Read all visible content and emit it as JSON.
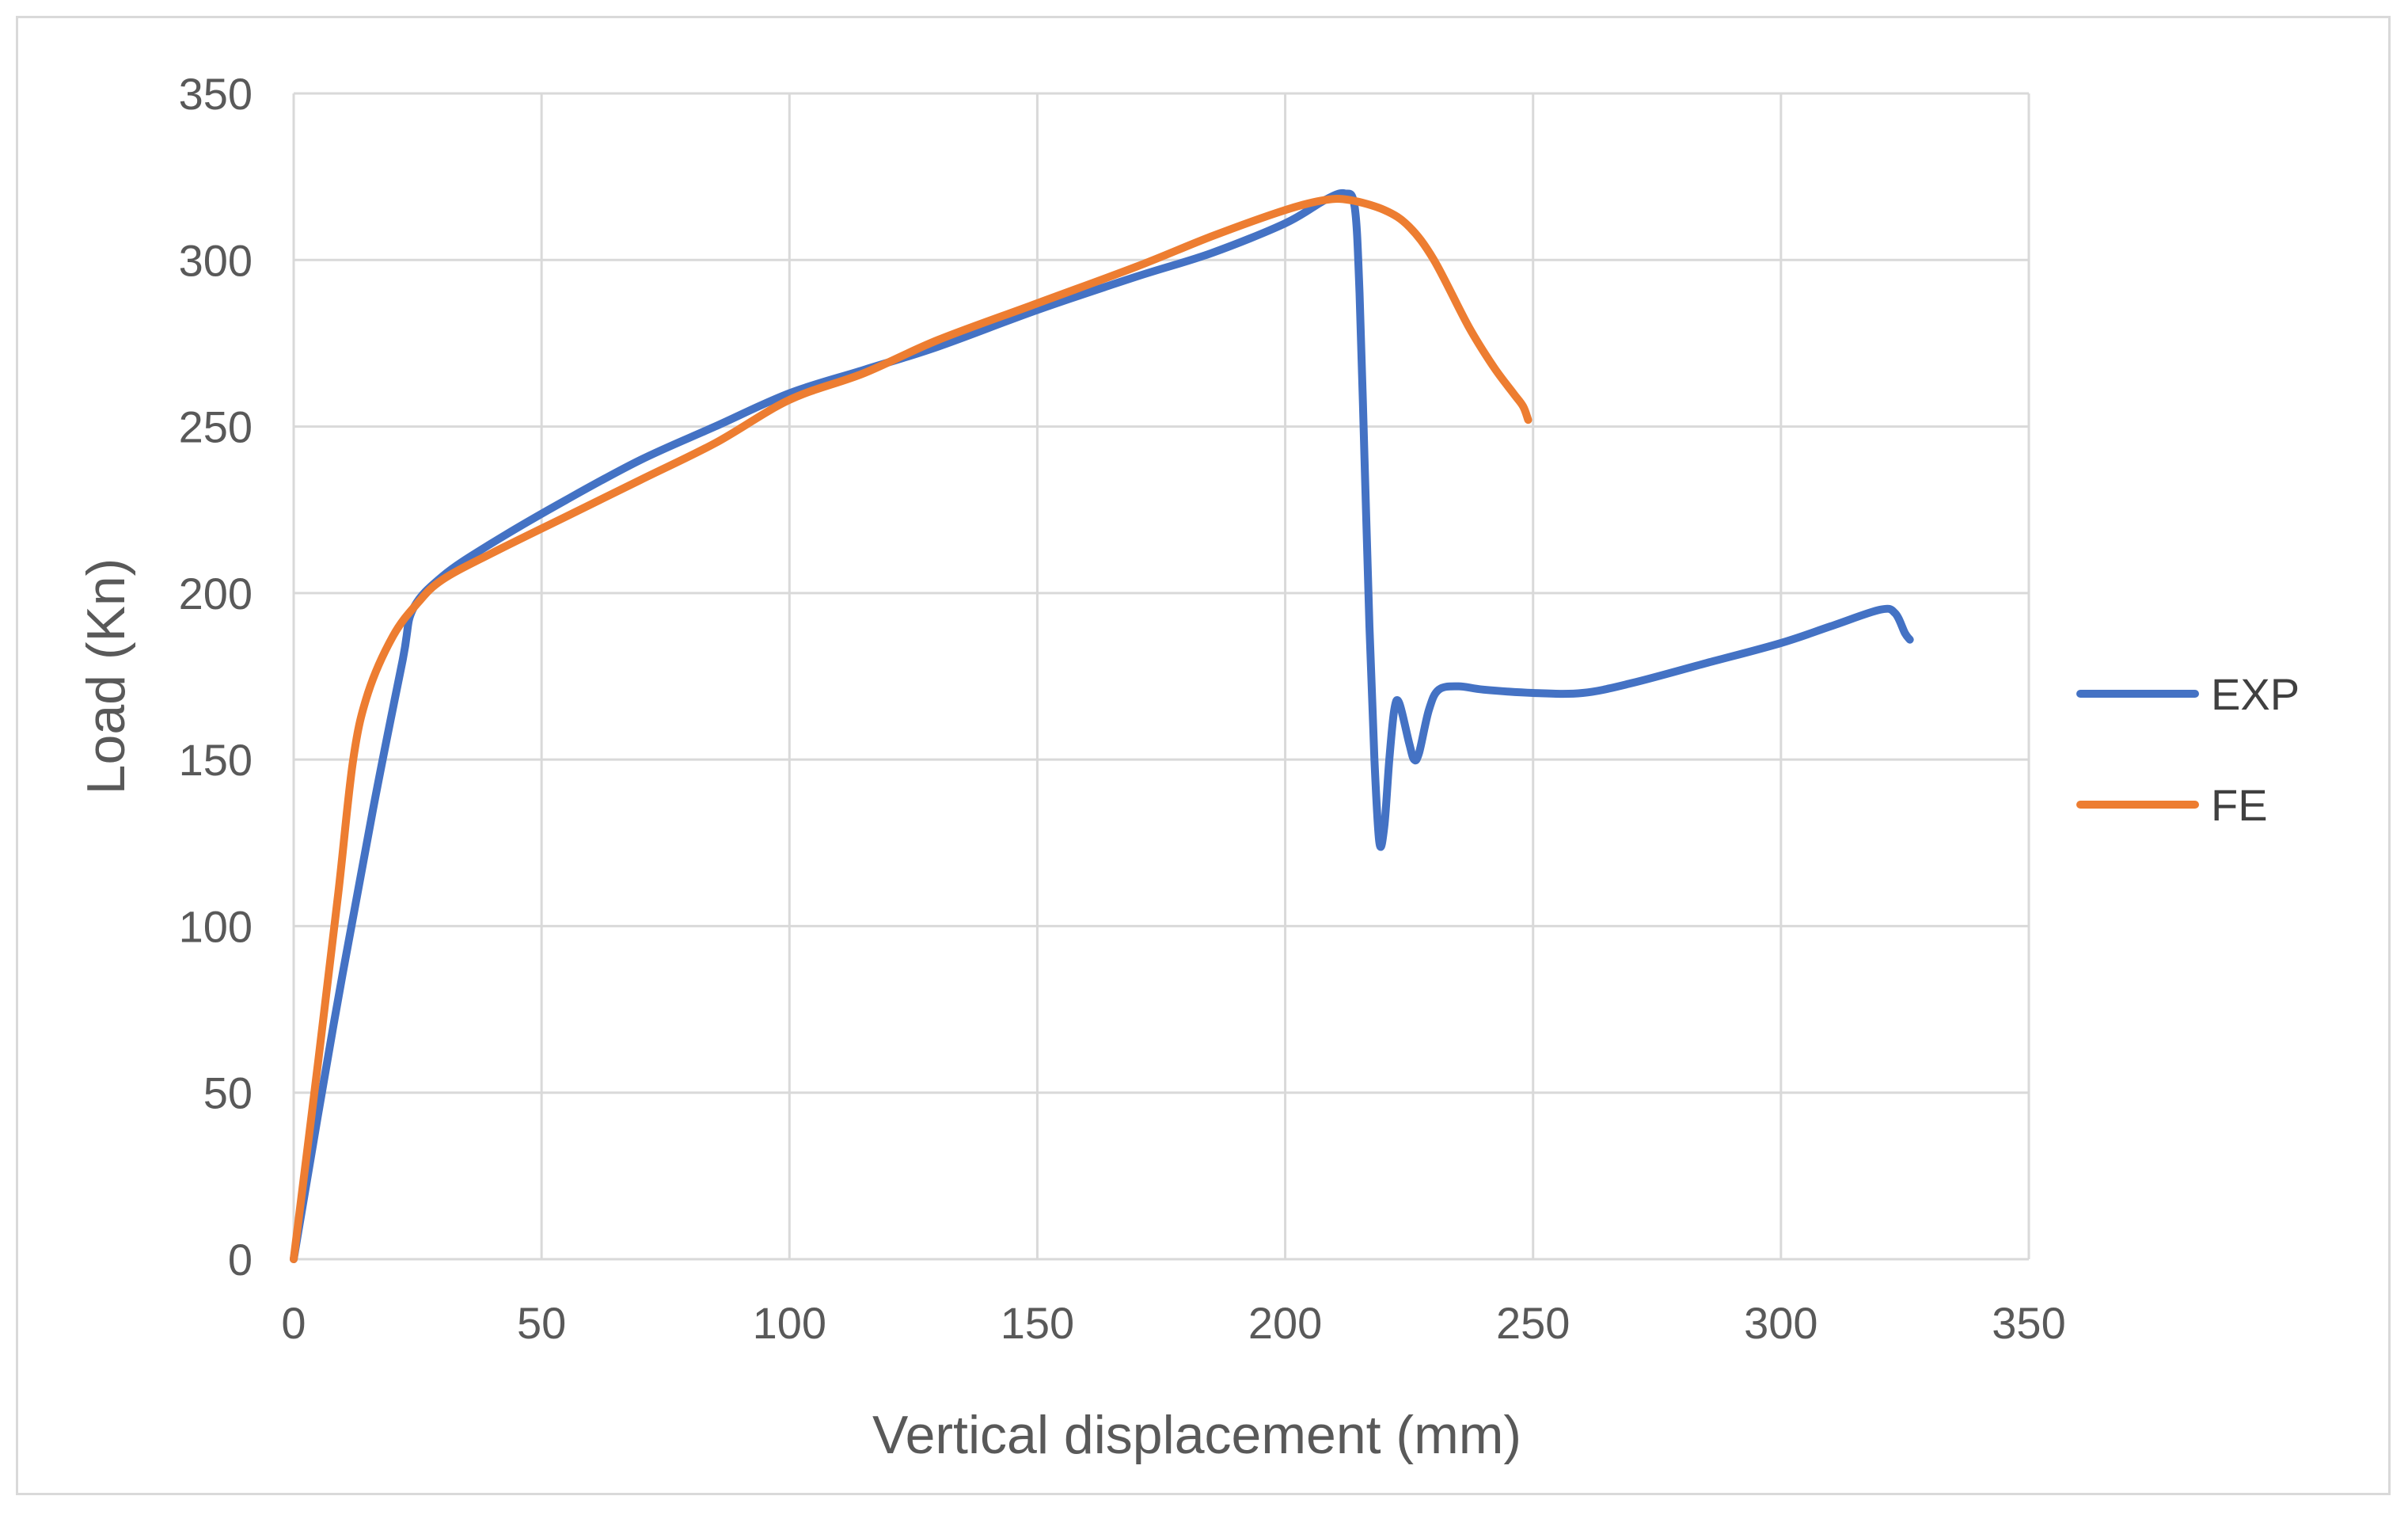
{
  "chart_data": {
    "type": "line",
    "title": "",
    "xlabel": "Vertical displacement (mm)",
    "ylabel": "Load (Kn)",
    "xlim": [
      0,
      350
    ],
    "ylim": [
      0,
      350
    ],
    "xticks": [
      0,
      50,
      100,
      150,
      200,
      250,
      300,
      350
    ],
    "yticks": [
      0,
      50,
      100,
      150,
      200,
      250,
      300,
      350
    ],
    "grid": true,
    "legend": "right",
    "series": [
      {
        "name": "EXP",
        "color": "#4472C4",
        "points": [
          [
            0,
            0
          ],
          [
            8,
            70
          ],
          [
            16,
            135
          ],
          [
            22,
            180
          ],
          [
            24,
            195
          ],
          [
            30,
            205
          ],
          [
            40,
            215
          ],
          [
            55,
            228
          ],
          [
            70,
            240
          ],
          [
            85,
            250
          ],
          [
            100,
            260
          ],
          [
            115,
            267
          ],
          [
            130,
            274
          ],
          [
            150,
            285
          ],
          [
            170,
            295
          ],
          [
            185,
            302
          ],
          [
            200,
            311
          ],
          [
            208,
            318
          ],
          [
            212,
            320
          ],
          [
            214,
            316
          ],
          [
            215,
            290
          ],
          [
            216,
            240
          ],
          [
            217,
            190
          ],
          [
            218,
            150
          ],
          [
            219,
            125
          ],
          [
            220,
            130
          ],
          [
            221,
            150
          ],
          [
            222,
            165
          ],
          [
            223,
            167
          ],
          [
            225,
            155
          ],
          [
            226,
            150
          ],
          [
            227,
            152
          ],
          [
            229,
            165
          ],
          [
            231,
            171
          ],
          [
            235,
            172
          ],
          [
            240,
            171
          ],
          [
            250,
            170
          ],
          [
            260,
            170
          ],
          [
            270,
            173
          ],
          [
            285,
            179
          ],
          [
            300,
            185
          ],
          [
            310,
            190
          ],
          [
            320,
            195
          ],
          [
            323,
            194
          ],
          [
            325,
            188
          ],
          [
            326,
            186
          ]
        ]
      },
      {
        "name": "FE",
        "color": "#ED7D31",
        "points": [
          [
            0,
            0
          ],
          [
            5,
            60
          ],
          [
            9,
            110
          ],
          [
            12,
            150
          ],
          [
            15,
            170
          ],
          [
            20,
            187
          ],
          [
            25,
            197
          ],
          [
            30,
            204
          ],
          [
            40,
            212
          ],
          [
            55,
            223
          ],
          [
            70,
            234
          ],
          [
            85,
            245
          ],
          [
            100,
            258
          ],
          [
            115,
            266
          ],
          [
            130,
            276
          ],
          [
            150,
            287
          ],
          [
            170,
            298
          ],
          [
            185,
            307
          ],
          [
            200,
            315
          ],
          [
            208,
            318
          ],
          [
            213,
            318
          ],
          [
            220,
            315
          ],
          [
            225,
            310
          ],
          [
            230,
            300
          ],
          [
            237,
            280
          ],
          [
            242,
            268
          ],
          [
            246,
            260
          ],
          [
            248,
            256
          ],
          [
            249,
            252
          ]
        ]
      }
    ]
  }
}
